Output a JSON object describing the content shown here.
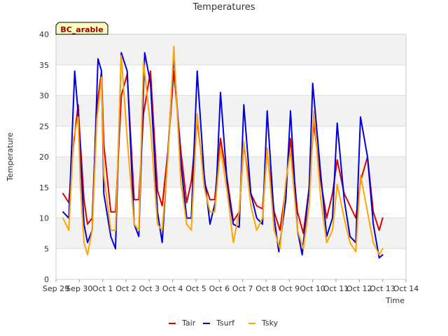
{
  "chart_data": {
    "type": "line",
    "title": "Temperatures",
    "xlabel": "Time",
    "ylabel": "Temperature",
    "site_badge": "BC_arable",
    "ylim": [
      0,
      40
    ],
    "yticks": [
      0,
      5,
      10,
      15,
      20,
      25,
      30,
      35,
      40
    ],
    "xlim": [
      0,
      15
    ],
    "xtick_positions": [
      0,
      1,
      2,
      3,
      4,
      5,
      6,
      7,
      8,
      9,
      10,
      11,
      12,
      13,
      14,
      15
    ],
    "xtick_labels": [
      "Sep 29",
      "Sep 30",
      "Oct 1",
      "Oct 2",
      "Oct 3",
      "Oct 4",
      "Oct 5",
      "Oct 6",
      "Oct 7",
      "Oct 8",
      "Oct 9",
      "Oct 10",
      "Oct 11",
      "Oct 12",
      "Oct 13",
      "Oct 14"
    ],
    "grid": true,
    "legend_position": "bottom-center",
    "series": [
      {
        "name": "Tair",
        "color": "#dd0000",
        "x": [
          0.3,
          0.55,
          0.75,
          0.95,
          1.0,
          1.2,
          1.35,
          1.55,
          1.75,
          1.95,
          2.05,
          2.35,
          2.55,
          2.8,
          3.05,
          3.35,
          3.55,
          3.75,
          4.05,
          4.35,
          4.55,
          4.8,
          5.05,
          5.35,
          5.6,
          5.8,
          6.05,
          6.35,
          6.6,
          6.8,
          7.05,
          7.35,
          7.6,
          7.85,
          8.05,
          8.35,
          8.6,
          8.85,
          9.05,
          9.35,
          9.6,
          9.85,
          10.05,
          10.35,
          10.6,
          10.85,
          11.05,
          11.35,
          11.6,
          11.85,
          12.05,
          12.35,
          12.6,
          12.85,
          13.05,
          13.35,
          13.6,
          13.85,
          14.0
        ],
        "y": [
          14,
          12.5,
          22,
          28.5,
          25,
          13,
          9,
          10,
          28,
          34,
          22,
          11,
          11,
          30,
          33.5,
          13,
          13,
          27,
          34,
          14.5,
          12,
          21,
          34,
          21,
          12.5,
          16,
          26,
          16,
          13,
          13,
          23,
          16,
          9.5,
          11,
          22,
          14,
          12,
          11.5,
          21,
          11,
          8,
          15,
          23,
          11,
          7.5,
          15,
          25.5,
          16,
          10,
          14,
          19.5,
          14,
          12,
          10,
          16,
          20,
          11,
          8,
          10
        ]
      },
      {
        "name": "Tsurf",
        "color": "#0000dd",
        "x": [
          0.3,
          0.55,
          0.8,
          0.95,
          1.05,
          1.2,
          1.35,
          1.55,
          1.8,
          1.95,
          2.05,
          2.35,
          2.55,
          2.8,
          3.05,
          3.35,
          3.55,
          3.8,
          4.05,
          4.35,
          4.55,
          4.8,
          5.05,
          5.35,
          5.6,
          5.8,
          6.05,
          6.35,
          6.6,
          6.85,
          7.05,
          7.35,
          7.6,
          7.85,
          8.05,
          8.35,
          8.6,
          8.85,
          9.05,
          9.35,
          9.55,
          9.85,
          10.05,
          10.35,
          10.55,
          10.85,
          11.0,
          11.35,
          11.6,
          11.85,
          12.05,
          12.35,
          12.6,
          12.85,
          13.05,
          13.35,
          13.6,
          13.85,
          14.0
        ],
        "y": [
          11,
          10,
          34,
          27,
          20,
          9,
          6,
          8,
          36,
          34,
          14,
          7,
          5,
          37,
          34,
          9,
          7,
          37,
          32,
          11,
          6,
          21,
          36.5,
          19,
          10,
          10,
          34,
          17,
          9,
          13,
          30.5,
          15,
          9,
          8.5,
          28.5,
          14,
          10,
          9,
          27.5,
          10,
          4.5,
          13,
          27.5,
          8,
          4,
          15,
          32,
          17,
          7,
          10,
          25.5,
          13,
          7,
          6,
          26.5,
          20,
          9,
          3.5,
          4
        ]
      },
      {
        "name": "Tsky",
        "color": "#ffa500",
        "x": [
          0.3,
          0.55,
          0.75,
          0.95,
          1.05,
          1.2,
          1.35,
          1.55,
          1.75,
          1.95,
          2.05,
          2.35,
          2.55,
          2.8,
          3.05,
          3.35,
          3.55,
          3.75,
          4.05,
          4.35,
          4.55,
          4.8,
          5.05,
          5.35,
          5.6,
          5.8,
          6.05,
          6.35,
          6.6,
          6.8,
          7.05,
          7.35,
          7.6,
          7.85,
          8.05,
          8.35,
          8.6,
          8.85,
          9.05,
          9.35,
          9.6,
          9.85,
          10.05,
          10.35,
          10.6,
          10.85,
          11.05,
          11.35,
          11.6,
          11.85,
          12.05,
          12.35,
          12.6,
          12.85,
          13.05,
          13.35,
          13.6,
          13.85,
          14.0
        ],
        "y": [
          10,
          8,
          23,
          26.5,
          15,
          6,
          4,
          8,
          26,
          33,
          17,
          8,
          8,
          36.5,
          23,
          9,
          8,
          35.5,
          25,
          9,
          8,
          20,
          38,
          16,
          9,
          8,
          27,
          15,
          11,
          11,
          21.5,
          14,
          6,
          11,
          22.5,
          12,
          8,
          10,
          21.5,
          8,
          5,
          16,
          21,
          8,
          5,
          12,
          27.5,
          13,
          6,
          8,
          15.5,
          10,
          6,
          4.5,
          17,
          11,
          6,
          4,
          5
        ]
      }
    ]
  }
}
